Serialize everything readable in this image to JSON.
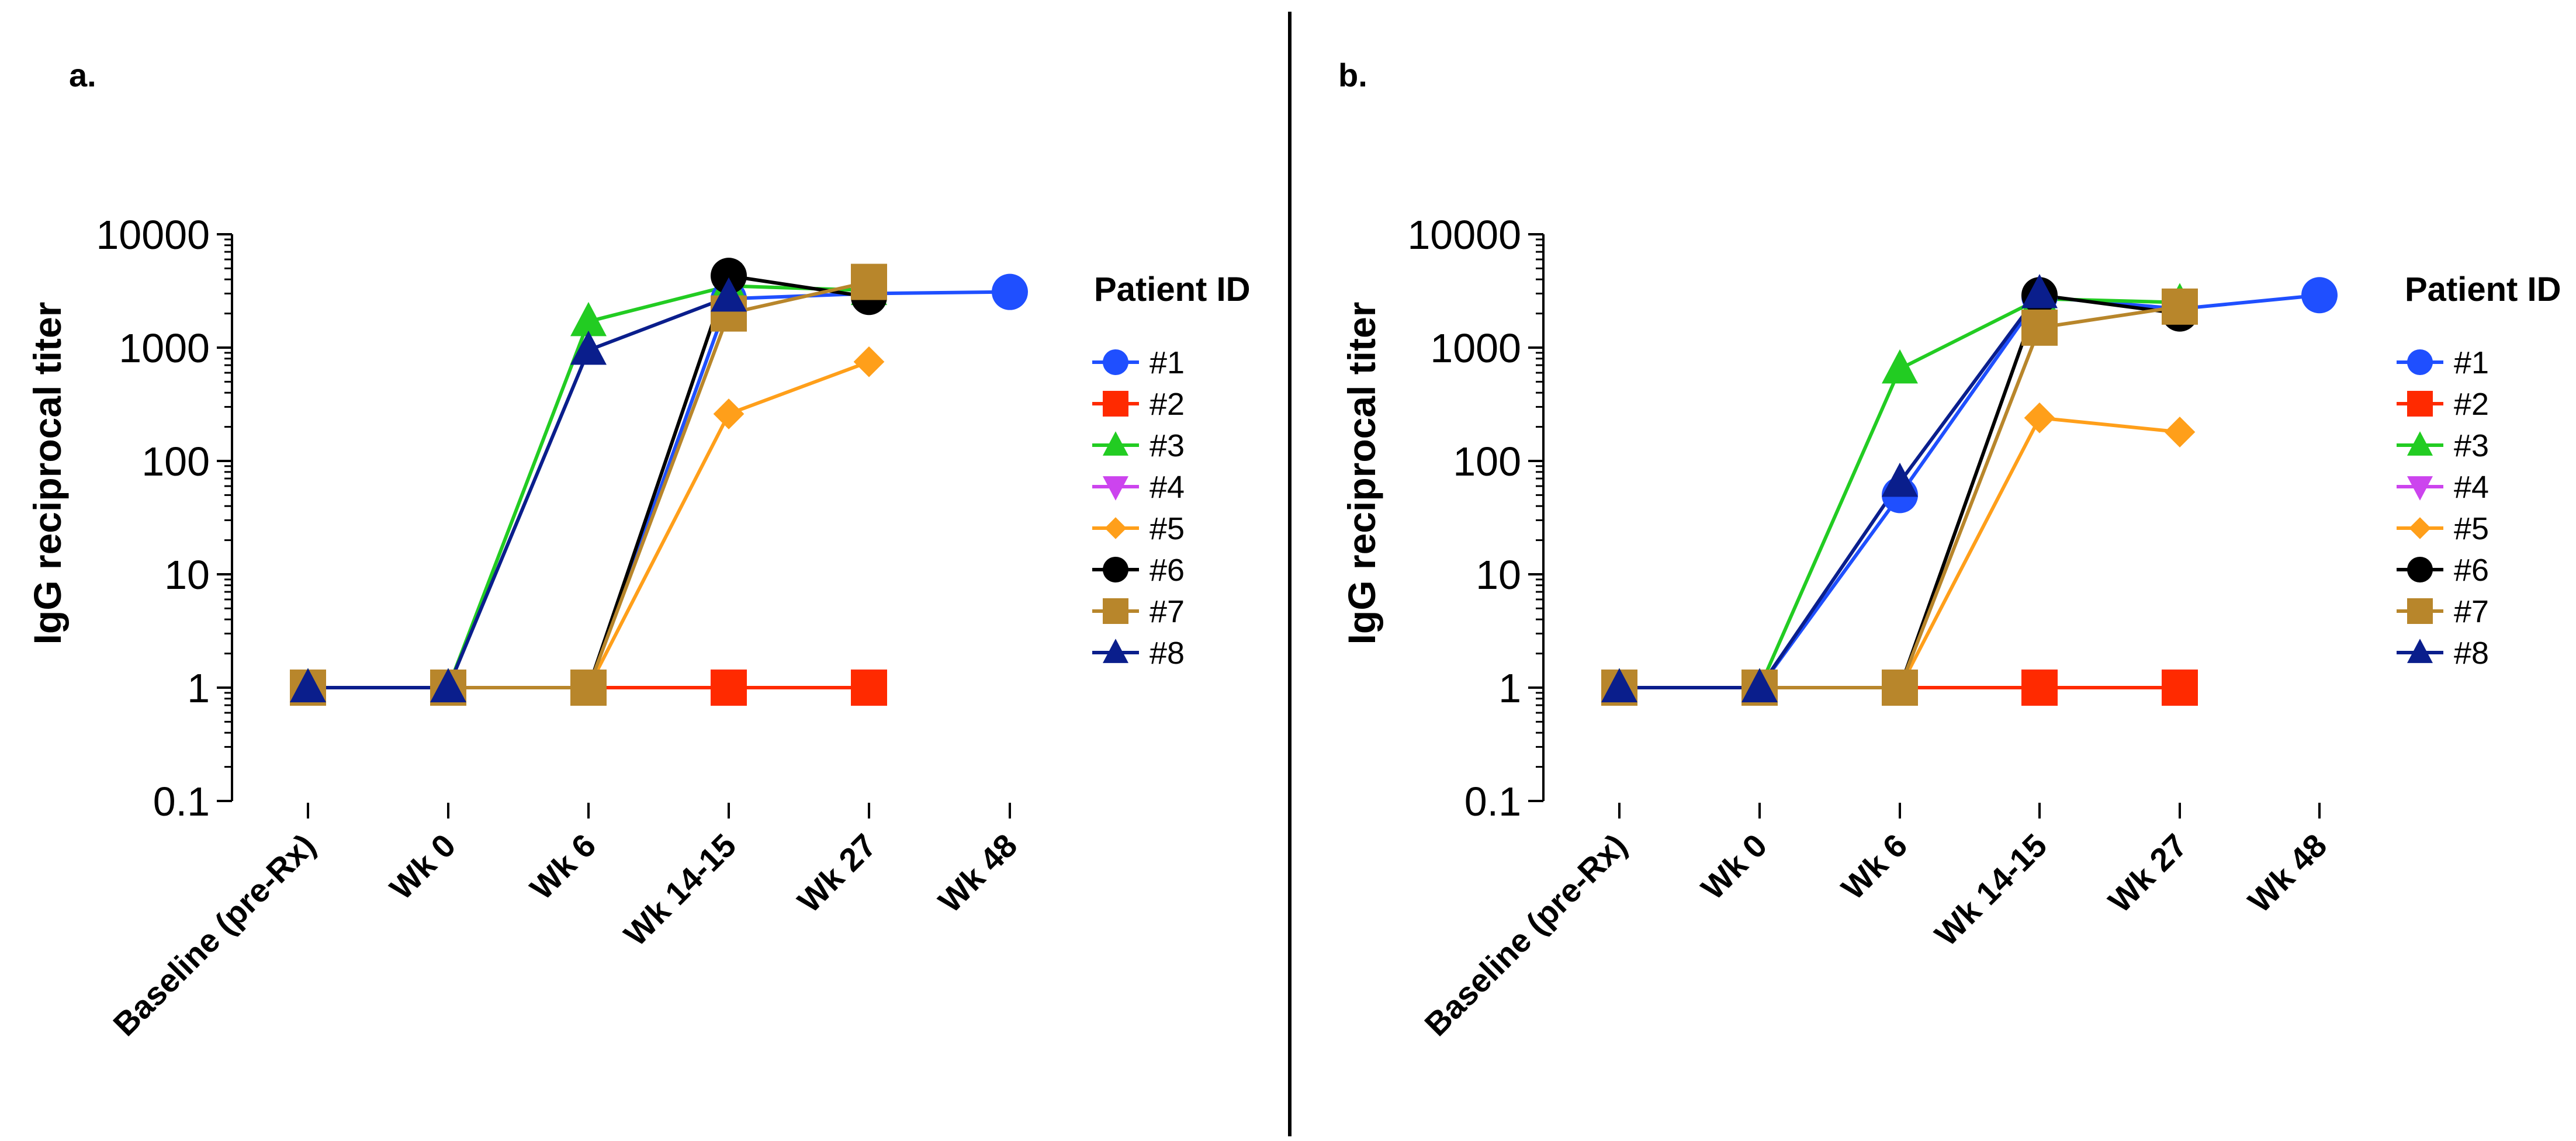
{
  "chart_data": [
    {
      "panel": "a.",
      "type": "line",
      "title": "",
      "xlabel": "",
      "ylabel": "IgG reciprocal titer",
      "yscale": "log",
      "ylim": [
        0.1,
        10000
      ],
      "yticks": [
        "10000",
        "1000",
        "100",
        "10",
        "1",
        "0.1"
      ],
      "categories": [
        "Baseline (pre-Rx)",
        "Wk 0",
        "Wk 6",
        "Wk 14-15",
        "Wk 27",
        "Wk 48"
      ],
      "legend_title": "Patient ID",
      "series": [
        {
          "name": "#1",
          "color": "#1f4fff",
          "marker": "circle",
          "values": [
            1,
            1,
            1,
            2700,
            3000,
            3100
          ]
        },
        {
          "name": "#2",
          "color": "#ff2a00",
          "marker": "square",
          "values": [
            1,
            1,
            1,
            1,
            1,
            null
          ]
        },
        {
          "name": "#3",
          "color": "#22cc22",
          "marker": "triangle-up",
          "values": [
            1,
            1,
            1700,
            3500,
            3200,
            null
          ]
        },
        {
          "name": "#4",
          "color": "#cc44ee",
          "marker": "triangle-down",
          "values": [
            null,
            null,
            null,
            null,
            null,
            null
          ]
        },
        {
          "name": "#5",
          "color": "#ff9f1a",
          "marker": "diamond",
          "values": [
            1,
            1,
            1,
            260,
            750,
            null
          ]
        },
        {
          "name": "#6",
          "color": "#000000",
          "marker": "circle",
          "values": [
            1,
            1,
            1,
            4300,
            2800,
            null
          ]
        },
        {
          "name": "#7",
          "color": "#b8862b",
          "marker": "square",
          "values": [
            1,
            1,
            1,
            2000,
            3800,
            null
          ]
        },
        {
          "name": "#8",
          "color": "#0a1e8c",
          "marker": "triangle-up",
          "values": [
            1,
            1,
            950,
            2800,
            null,
            null
          ]
        }
      ]
    },
    {
      "panel": "b.",
      "type": "line",
      "title": "",
      "xlabel": "",
      "ylabel": "IgG reciprocal titer",
      "yscale": "log",
      "ylim": [
        0.1,
        10000
      ],
      "yticks": [
        "10000",
        "1000",
        "100",
        "10",
        "1",
        "0.1"
      ],
      "categories": [
        "Baseline (pre-Rx)",
        "Wk 0",
        "Wk 6",
        "Wk 14-15",
        "Wk 27",
        "Wk 48"
      ],
      "legend_title": "Patient ID",
      "series": [
        {
          "name": "#1",
          "color": "#1f4fff",
          "marker": "circle",
          "values": [
            1,
            1,
            50,
            2800,
            2200,
            2900
          ]
        },
        {
          "name": "#2",
          "color": "#ff2a00",
          "marker": "square",
          "values": [
            1,
            1,
            1,
            1,
            1,
            null
          ]
        },
        {
          "name": "#3",
          "color": "#22cc22",
          "marker": "triangle-up",
          "values": [
            1,
            1,
            650,
            2700,
            2500,
            null
          ]
        },
        {
          "name": "#4",
          "color": "#cc44ee",
          "marker": "triangle-down",
          "values": [
            null,
            null,
            null,
            null,
            null,
            null
          ]
        },
        {
          "name": "#5",
          "color": "#ff9f1a",
          "marker": "diamond",
          "values": [
            1,
            1,
            1,
            240,
            180,
            null
          ]
        },
        {
          "name": "#6",
          "color": "#000000",
          "marker": "circle",
          "values": [
            1,
            1,
            1,
            2900,
            2000,
            null
          ]
        },
        {
          "name": "#7",
          "color": "#b8862b",
          "marker": "square",
          "values": [
            1,
            1,
            1,
            1500,
            2300,
            null
          ]
        },
        {
          "name": "#8",
          "color": "#0a1e8c",
          "marker": "triangle-up",
          "values": [
            1,
            1,
            65,
            3000,
            null,
            null
          ]
        }
      ]
    }
  ]
}
